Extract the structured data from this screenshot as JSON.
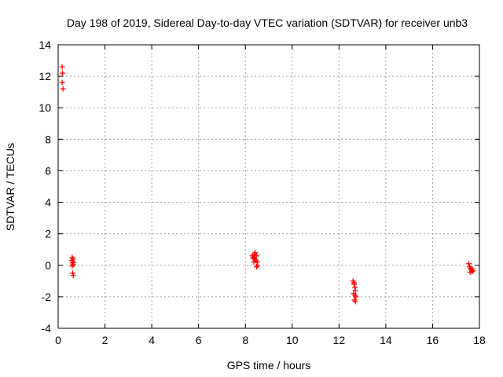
{
  "chart_data": {
    "type": "scatter",
    "title": "Day 198 of 2019, Sidereal Day-to-day VTEC variation (SDTVAR) for receiver unb3",
    "xlabel": "GPS time / hours",
    "ylabel": "SDTVAR / TECUs",
    "xlim": [
      0,
      18
    ],
    "ylim": [
      -4,
      14
    ],
    "xticks": [
      "0",
      "2",
      "4",
      "6",
      "8",
      "10",
      "12",
      "14",
      "16",
      "18"
    ],
    "yticks": [
      "-4",
      "-2",
      "0",
      "2",
      "4",
      "6",
      "8",
      "10",
      "12",
      "14"
    ],
    "grid": true,
    "marker": "+",
    "color": "#ff0000",
    "series": [
      {
        "name": "SDTVAR",
        "points": [
          [
            0.17,
            12.6
          ],
          [
            0.19,
            12.2
          ],
          [
            0.17,
            11.6
          ],
          [
            0.21,
            11.2
          ],
          [
            0.6,
            0.5
          ],
          [
            0.63,
            0.4
          ],
          [
            0.58,
            0.3
          ],
          [
            0.66,
            0.2
          ],
          [
            0.61,
            0.15
          ],
          [
            0.64,
            0.05
          ],
          [
            0.6,
            -0.05
          ],
          [
            0.62,
            -0.5
          ],
          [
            0.65,
            -0.65
          ],
          [
            8.3,
            0.6
          ],
          [
            8.35,
            0.5
          ],
          [
            8.38,
            0.7
          ],
          [
            8.4,
            0.4
          ],
          [
            8.42,
            0.8
          ],
          [
            8.45,
            0.3
          ],
          [
            8.47,
            0.6
          ],
          [
            8.5,
            0.2
          ],
          [
            8.52,
            0.0
          ],
          [
            8.48,
            -0.1
          ],
          [
            8.36,
            0.2
          ],
          [
            8.33,
            0.45
          ],
          [
            12.6,
            -1.0
          ],
          [
            12.65,
            -1.2
          ],
          [
            12.68,
            -1.4
          ],
          [
            12.7,
            -1.6
          ],
          [
            12.62,
            -1.8
          ],
          [
            12.72,
            -2.0
          ],
          [
            12.66,
            -2.2
          ],
          [
            12.7,
            -2.3
          ],
          [
            12.64,
            -1.1
          ],
          [
            12.69,
            -1.9
          ],
          [
            17.55,
            0.1
          ],
          [
            17.58,
            -0.1
          ],
          [
            17.62,
            -0.2
          ],
          [
            17.65,
            -0.3
          ],
          [
            17.68,
            -0.4
          ],
          [
            17.7,
            -0.25
          ],
          [
            17.73,
            -0.35
          ],
          [
            17.6,
            -0.45
          ]
        ]
      }
    ]
  }
}
